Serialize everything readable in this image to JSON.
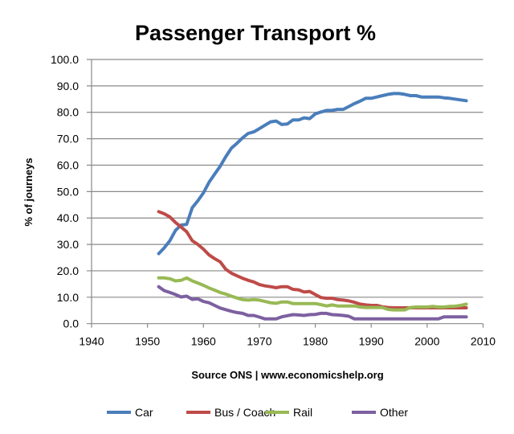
{
  "chart_data": {
    "type": "line",
    "title": "Passenger Transport %",
    "xlabel": "Source ONS | www.economicshelp.org",
    "ylabel": "% of journeys",
    "xlim": [
      1940,
      2010
    ],
    "ylim": [
      0,
      100
    ],
    "xticks": [
      "1940",
      "1950",
      "1960",
      "1970",
      "1980",
      "1990",
      "2000",
      "2010"
    ],
    "yticks": [
      "0.0",
      "10.0",
      "20.0",
      "30.0",
      "40.0",
      "50.0",
      "60.0",
      "70.0",
      "80.0",
      "90.0",
      "100.0"
    ],
    "grid": "horizontal",
    "legend_position": "bottom",
    "x": [
      1952,
      1953,
      1954,
      1955,
      1956,
      1957,
      1958,
      1959,
      1960,
      1961,
      1962,
      1963,
      1964,
      1965,
      1966,
      1967,
      1968,
      1969,
      1970,
      1971,
      1972,
      1973,
      1974,
      1975,
      1976,
      1977,
      1978,
      1979,
      1980,
      1981,
      1982,
      1983,
      1984,
      1985,
      1986,
      1987,
      1988,
      1989,
      1990,
      1991,
      1992,
      1993,
      1994,
      1995,
      1996,
      1997,
      1998,
      1999,
      2000,
      2001,
      2002,
      2003,
      2004,
      2005,
      2006,
      2007
    ],
    "series": [
      {
        "name": "Car",
        "color": "#4a7ebb",
        "values": [
          26.5,
          28.7,
          31.4,
          35.3,
          37.3,
          37.6,
          43.9,
          46.5,
          49.5,
          53.5,
          56.6,
          59.6,
          63.2,
          66.4,
          68.3,
          70.3,
          72.0,
          72.6,
          73.8,
          75.1,
          76.4,
          76.7,
          75.4,
          75.6,
          77.1,
          77.1,
          77.9,
          77.6,
          79.4,
          80.1,
          80.7,
          80.7,
          81.1,
          81.1,
          82.2,
          83.3,
          84.2,
          85.3,
          85.3,
          85.8,
          86.3,
          86.8,
          87.1,
          87.1,
          86.8,
          86.3,
          86.3,
          85.8,
          85.8,
          85.8,
          85.8,
          85.5,
          85.3,
          85.0,
          84.7,
          84.4
        ]
      },
      {
        "name": "Bus / Coach",
        "color": "#be4b48",
        "values": [
          42.4,
          41.6,
          40.4,
          38.3,
          36.6,
          34.8,
          31.4,
          30.0,
          28.2,
          26.0,
          24.6,
          23.4,
          20.6,
          19.1,
          18.1,
          17.2,
          16.4,
          15.8,
          14.8,
          14.3,
          14.0,
          13.6,
          14.0,
          14.0,
          13.0,
          12.8,
          12.0,
          12.2,
          11.0,
          9.9,
          9.6,
          9.6,
          9.1,
          8.9,
          8.6,
          8.1,
          7.4,
          7.1,
          6.9,
          6.9,
          6.4,
          6.1,
          6.0,
          6.0,
          6.0,
          6.0,
          6.0,
          6.0,
          6.0,
          6.0,
          6.0,
          6.0,
          6.0,
          6.0,
          6.0,
          6.0
        ]
      },
      {
        "name": "Rail",
        "color": "#98b954",
        "values": [
          17.3,
          17.3,
          17.0,
          16.2,
          16.4,
          17.3,
          16.2,
          15.4,
          14.5,
          13.5,
          12.7,
          11.8,
          11.2,
          10.4,
          9.7,
          9.1,
          8.9,
          9.1,
          8.9,
          8.4,
          7.9,
          7.7,
          8.2,
          8.2,
          7.6,
          7.6,
          7.6,
          7.6,
          7.6,
          7.2,
          6.7,
          7.1,
          6.7,
          6.7,
          6.7,
          6.7,
          6.3,
          6.1,
          6.1,
          6.1,
          6.1,
          5.4,
          5.2,
          5.2,
          5.2,
          6.1,
          6.3,
          6.3,
          6.3,
          6.5,
          6.3,
          6.3,
          6.5,
          6.6,
          6.9,
          7.4
        ]
      },
      {
        "name": "Other",
        "color": "#7d60a0",
        "values": [
          14.0,
          12.5,
          11.8,
          11.0,
          10.1,
          10.4,
          9.2,
          9.4,
          8.4,
          7.9,
          6.9,
          5.9,
          5.3,
          4.7,
          4.2,
          3.9,
          3.1,
          3.1,
          2.5,
          1.8,
          1.8,
          1.8,
          2.6,
          3.0,
          3.4,
          3.3,
          3.1,
          3.4,
          3.5,
          3.9,
          3.9,
          3.4,
          3.3,
          3.1,
          2.8,
          1.8,
          1.8,
          1.8,
          1.8,
          1.8,
          1.8,
          1.8,
          1.8,
          1.8,
          1.8,
          1.8,
          1.8,
          1.8,
          1.8,
          1.8,
          1.8,
          2.6,
          2.6,
          2.6,
          2.6,
          2.6
        ]
      }
    ]
  }
}
